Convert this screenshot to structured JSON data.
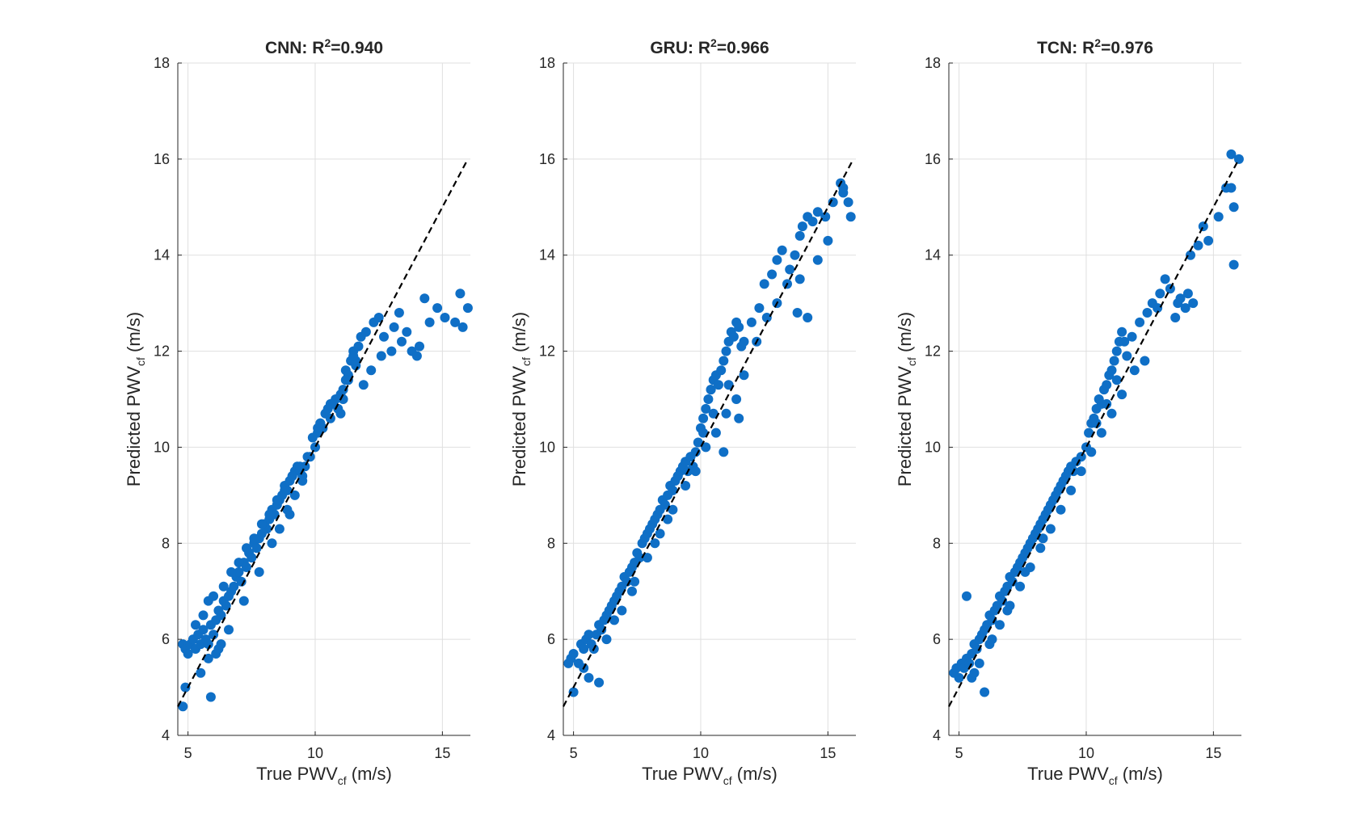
{
  "chart_data": [
    {
      "type": "scatter",
      "title": "CNN:  R²=0.940",
      "title_main": "CNN:  R",
      "title_sup": "2",
      "title_rest": "=0.940",
      "xlabel": "True  PWVcf  (m/s)",
      "ylabel": "Predicted  PWVcf  (m/s)",
      "xlim": [
        4.6,
        16.1
      ],
      "ylim": [
        4,
        18
      ],
      "xticks": [
        5,
        10,
        15
      ],
      "yticks": [
        4,
        6,
        8,
        10,
        12,
        14,
        16,
        18
      ],
      "grid": true,
      "reference_line": {
        "style": "dashed",
        "x": [
          4.6,
          16
        ],
        "y": [
          4.6,
          16
        ]
      },
      "marker_color": "#0f6fc6",
      "series": [
        {
          "x": [
            4.8,
            4.9,
            5.0,
            5.1,
            5.2,
            5.3,
            5.4,
            5.5,
            5.6,
            5.7,
            5.8,
            5.9,
            6.0,
            6.1,
            6.2,
            6.3,
            6.4,
            6.5,
            6.6,
            6.7,
            6.8,
            6.9,
            7.0,
            7.1,
            7.2,
            7.3,
            7.4,
            7.5,
            7.6,
            7.7,
            7.8,
            7.9,
            8.0,
            8.1,
            8.2,
            8.3,
            8.4,
            8.5,
            8.6,
            8.7,
            8.8,
            8.9,
            9.0,
            9.1,
            9.2,
            9.3,
            9.4,
            9.5,
            9.6,
            9.8,
            10.0,
            10.1,
            10.2,
            10.3,
            10.4,
            10.5,
            10.6,
            10.8,
            11.0,
            11.1,
            11.2,
            11.3,
            11.4,
            11.5,
            11.6,
            11.7,
            11.8,
            12.0,
            12.3,
            12.5,
            12.7,
            13.0,
            13.1,
            13.3,
            13.4,
            13.6,
            13.8,
            14.0,
            14.1,
            14.3,
            14.5,
            14.8,
            15.1,
            15.5,
            15.7,
            15.8,
            16.0,
            4.8,
            4.9,
            5.5,
            5.9,
            6.1,
            6.3,
            5.3,
            5.6,
            5.8,
            6.0,
            6.4,
            6.7,
            7.0,
            7.3,
            7.6,
            7.9,
            8.2,
            8.5,
            8.8,
            9.1,
            9.4,
            9.7,
            10.1,
            10.4,
            10.7,
            11.0,
            11.3,
            11.6,
            9.9,
            10.2,
            10.6,
            11.2,
            11.5,
            11.9,
            12.2,
            12.6,
            8.3,
            8.6,
            8.9,
            9.2,
            9.5,
            7.8,
            7.2,
            6.6,
            6.2,
            5.8,
            10.9,
            11.1,
            9.0
          ],
          "y": [
            5.9,
            5.8,
            5.7,
            5.9,
            6.0,
            5.8,
            6.1,
            5.9,
            6.2,
            6.0,
            5.9,
            6.3,
            6.1,
            6.4,
            6.6,
            6.5,
            6.8,
            6.7,
            6.9,
            7.0,
            7.1,
            7.3,
            7.4,
            7.2,
            7.6,
            7.5,
            7.8,
            7.7,
            8.0,
            7.9,
            8.1,
            8.2,
            8.4,
            8.3,
            8.5,
            8.7,
            8.6,
            8.8,
            8.9,
            9.0,
            9.2,
            9.1,
            9.3,
            9.4,
            9.5,
            9.6,
            9.5,
            9.4,
            9.6,
            9.8,
            10.0,
            10.3,
            10.5,
            10.4,
            10.7,
            10.8,
            10.6,
            11.0,
            10.7,
            11.2,
            11.6,
            11.5,
            11.8,
            12.0,
            11.7,
            12.1,
            12.3,
            12.4,
            12.6,
            12.7,
            12.3,
            12.0,
            12.5,
            12.8,
            12.2,
            12.4,
            12.0,
            11.9,
            12.1,
            13.1,
            12.6,
            12.9,
            12.7,
            12.6,
            13.2,
            12.5,
            12.9,
            4.6,
            5.0,
            5.3,
            4.8,
            5.7,
            5.9,
            6.3,
            6.5,
            6.8,
            6.9,
            7.1,
            7.4,
            7.6,
            7.9,
            8.1,
            8.4,
            8.6,
            8.9,
            9.1,
            9.4,
            9.6,
            9.8,
            10.4,
            10.7,
            10.9,
            11.1,
            11.4,
            11.8,
            10.2,
            10.5,
            10.9,
            11.4,
            11.9,
            11.3,
            11.6,
            11.9,
            8.0,
            8.3,
            8.7,
            9.0,
            9.3,
            7.4,
            6.8,
            6.2,
            5.8,
            5.6,
            10.8,
            11.0,
            8.6
          ]
        }
      ]
    },
    {
      "type": "scatter",
      "title": "GRU:  R²=0.966",
      "title_main": "GRU:  R",
      "title_sup": "2",
      "title_rest": "=0.966",
      "xlabel": "True  PWVcf  (m/s)",
      "ylabel": "Predicted  PWVcf  (m/s)",
      "xlim": [
        4.6,
        16.1
      ],
      "ylim": [
        4,
        18
      ],
      "xticks": [
        5,
        10,
        15
      ],
      "yticks": [
        4,
        6,
        8,
        10,
        12,
        14,
        16,
        18
      ],
      "grid": true,
      "reference_line": {
        "style": "dashed",
        "x": [
          4.6,
          16
        ],
        "y": [
          4.6,
          16
        ]
      },
      "marker_color": "#0f6fc6",
      "series": [
        {
          "x": [
            4.8,
            4.9,
            5.0,
            5.2,
            5.3,
            5.4,
            5.5,
            5.6,
            5.7,
            5.8,
            5.9,
            6.0,
            6.1,
            6.2,
            6.3,
            6.4,
            6.5,
            6.6,
            6.7,
            6.8,
            6.9,
            7.0,
            7.1,
            7.2,
            7.3,
            7.4,
            7.5,
            7.6,
            7.7,
            7.8,
            7.9,
            8.0,
            8.1,
            8.2,
            8.3,
            8.4,
            8.5,
            8.6,
            8.7,
            8.8,
            8.9,
            9.0,
            9.1,
            9.2,
            9.3,
            9.4,
            9.5,
            9.6,
            9.7,
            9.8,
            9.9,
            10.0,
            10.1,
            10.2,
            10.3,
            10.4,
            10.5,
            10.6,
            10.7,
            10.8,
            10.9,
            11.0,
            11.1,
            11.2,
            11.3,
            11.4,
            11.5,
            11.6,
            11.7,
            12.0,
            12.3,
            12.5,
            12.8,
            13.0,
            13.2,
            13.5,
            13.7,
            13.9,
            14.0,
            14.2,
            14.4,
            14.6,
            14.9,
            15.2,
            15.5,
            15.6,
            15.8,
            15.9,
            6.0,
            5.0,
            5.4,
            5.6,
            6.3,
            6.9,
            7.4,
            7.9,
            8.4,
            8.9,
            9.4,
            9.8,
            10.2,
            10.6,
            11.0,
            11.4,
            11.7,
            12.2,
            12.6,
            13.0,
            13.4,
            13.8,
            14.2,
            14.6,
            15.0,
            15.6,
            9.1,
            9.6,
            10.1,
            10.5,
            11.1,
            11.5,
            8.2,
            8.7,
            7.3,
            6.6,
            13.9,
            10.9,
            10.4
          ],
          "y": [
            5.5,
            5.6,
            5.7,
            5.5,
            5.9,
            5.8,
            6.0,
            6.1,
            5.9,
            5.8,
            6.1,
            6.3,
            6.2,
            6.4,
            6.5,
            6.6,
            6.7,
            6.8,
            6.9,
            7.0,
            7.1,
            7.3,
            7.2,
            7.4,
            7.5,
            7.6,
            7.8,
            7.7,
            8.0,
            8.1,
            8.2,
            8.3,
            8.4,
            8.5,
            8.6,
            8.7,
            8.9,
            8.8,
            9.0,
            9.2,
            9.1,
            9.3,
            9.4,
            9.5,
            9.6,
            9.7,
            9.5,
            9.8,
            9.6,
            9.9,
            10.1,
            10.4,
            10.6,
            10.8,
            11.0,
            11.2,
            11.4,
            11.5,
            11.3,
            11.6,
            11.8,
            12.0,
            12.2,
            12.4,
            12.3,
            12.6,
            12.5,
            12.1,
            12.2,
            12.6,
            12.9,
            13.4,
            13.6,
            13.9,
            14.1,
            13.7,
            14.0,
            14.4,
            14.6,
            14.8,
            14.7,
            14.9,
            14.8,
            15.1,
            15.5,
            15.4,
            15.1,
            14.8,
            5.1,
            4.9,
            5.4,
            5.2,
            6.0,
            6.6,
            7.2,
            7.7,
            8.2,
            8.7,
            9.2,
            9.5,
            10.0,
            10.3,
            10.7,
            11.0,
            11.5,
            12.2,
            12.7,
            13.0,
            13.4,
            12.8,
            12.7,
            13.9,
            14.3,
            15.3,
            9.4,
            9.8,
            10.3,
            10.7,
            11.3,
            10.6,
            8.0,
            8.5,
            7.0,
            6.4,
            13.5,
            9.9,
            11.2
          ]
        }
      ]
    },
    {
      "type": "scatter",
      "title": "TCN:  R²=0.976",
      "title_main": "TCN:  R",
      "title_sup": "2",
      "title_rest": "=0.976",
      "xlabel": "True  PWVcf  (m/s)",
      "ylabel": "Predicted  PWVcf  (m/s)",
      "xlim": [
        4.6,
        16.1
      ],
      "ylim": [
        4,
        18
      ],
      "xticks": [
        5,
        10,
        15
      ],
      "yticks": [
        4,
        6,
        8,
        10,
        12,
        14,
        16,
        18
      ],
      "grid": true,
      "reference_line": {
        "style": "dashed",
        "x": [
          4.6,
          16
        ],
        "y": [
          4.6,
          16
        ]
      },
      "marker_color": "#0f6fc6",
      "series": [
        {
          "x": [
            4.8,
            4.9,
            5.0,
            5.1,
            5.2,
            5.3,
            5.4,
            5.5,
            5.6,
            5.7,
            5.8,
            5.9,
            6.0,
            6.1,
            6.2,
            6.3,
            6.4,
            6.5,
            6.6,
            6.7,
            6.8,
            6.9,
            7.0,
            7.1,
            7.2,
            7.3,
            7.4,
            7.5,
            7.6,
            7.7,
            7.8,
            7.9,
            8.0,
            8.1,
            8.2,
            8.3,
            8.4,
            8.5,
            8.6,
            8.7,
            8.8,
            8.9,
            9.0,
            9.1,
            9.2,
            9.3,
            9.4,
            9.5,
            9.6,
            9.8,
            10.0,
            10.1,
            10.2,
            10.3,
            10.4,
            10.5,
            10.6,
            10.7,
            10.8,
            10.9,
            11.0,
            11.1,
            11.2,
            11.3,
            11.4,
            11.5,
            11.6,
            11.8,
            12.1,
            12.4,
            12.6,
            12.8,
            13.1,
            13.3,
            13.5,
            13.7,
            13.9,
            14.0,
            14.2,
            14.4,
            14.6,
            14.8,
            15.2,
            15.5,
            15.7,
            15.8,
            16.0,
            5.3,
            6.0,
            5.5,
            5.8,
            6.2,
            6.6,
            7.0,
            7.4,
            7.8,
            8.2,
            8.6,
            9.0,
            9.4,
            9.8,
            10.2,
            10.6,
            11.0,
            11.4,
            11.9,
            12.3,
            12.9,
            13.6,
            14.1,
            15.7,
            15.8,
            10.4,
            10.8,
            11.2,
            9.1,
            8.3,
            7.6,
            6.9,
            6.3,
            5.6
          ],
          "y": [
            5.3,
            5.4,
            5.2,
            5.5,
            5.4,
            5.6,
            5.5,
            5.7,
            5.9,
            5.8,
            6.0,
            6.1,
            6.2,
            6.3,
            6.5,
            6.4,
            6.6,
            6.7,
            6.9,
            6.8,
            7.0,
            7.1,
            7.3,
            7.2,
            7.4,
            7.5,
            7.6,
            7.7,
            7.8,
            7.9,
            8.0,
            8.1,
            8.2,
            8.3,
            8.4,
            8.5,
            8.6,
            8.7,
            8.8,
            8.9,
            9.0,
            9.1,
            9.2,
            9.3,
            9.4,
            9.5,
            9.6,
            9.5,
            9.7,
            9.8,
            10.0,
            10.3,
            10.5,
            10.6,
            10.8,
            11.0,
            10.9,
            11.2,
            11.3,
            11.5,
            11.6,
            11.8,
            12.0,
            12.2,
            12.4,
            12.2,
            11.9,
            12.3,
            12.6,
            12.8,
            13.0,
            12.9,
            13.5,
            13.3,
            12.7,
            13.1,
            12.9,
            13.2,
            13.0,
            14.2,
            14.6,
            14.3,
            14.8,
            15.4,
            16.1,
            15.0,
            16.0,
            6.9,
            4.9,
            5.2,
            5.5,
            5.9,
            6.3,
            6.7,
            7.1,
            7.5,
            7.9,
            8.3,
            8.7,
            9.1,
            9.5,
            9.9,
            10.3,
            10.7,
            11.1,
            11.6,
            11.8,
            13.2,
            13.0,
            14.0,
            15.4,
            13.8,
            10.5,
            10.9,
            11.4,
            9.3,
            8.1,
            7.4,
            6.6,
            6.0,
            5.3
          ]
        }
      ]
    }
  ]
}
